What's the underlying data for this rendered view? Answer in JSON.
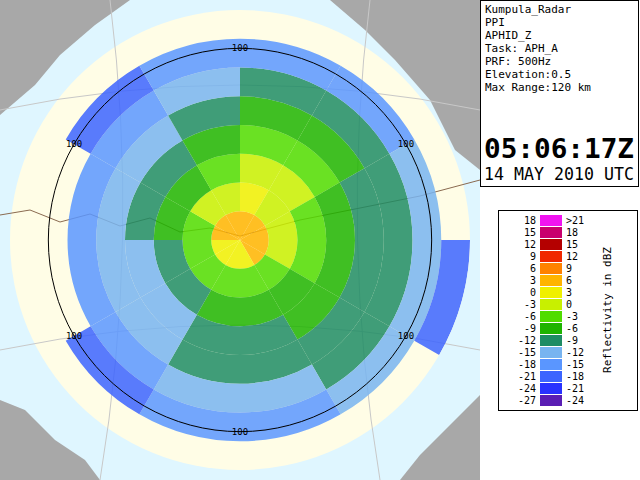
{
  "chart_data": {
    "type": "radar_ppi",
    "header": [
      "Kumpula_Radar",
      "PPI",
      "APHID_Z",
      "Task: APH_A",
      "PRF: 500Hz",
      "Elevation:0.5",
      "Max Range:120 km"
    ],
    "time": "05:06:17Z",
    "date": "14 MAY 2010 UTC",
    "rlim": [
      0,
      120
    ],
    "range_rings": [
      100
    ],
    "azimuth_bins": [
      0,
      30,
      60,
      90,
      120,
      150,
      180,
      210,
      240,
      270,
      300,
      330,
      360
    ],
    "range_bins": [
      0,
      15,
      30,
      45,
      60,
      75,
      90,
      105,
      120
    ],
    "cells": [
      [
        3,
        0,
        -3,
        -6,
        -9,
        -12,
        -18,
        null
      ],
      [
        3,
        -1,
        -3,
        -6,
        -9,
        -12,
        -18,
        null
      ],
      [
        3,
        -3,
        -6,
        -8,
        -10,
        -12,
        -15,
        null
      ],
      [
        3,
        -3,
        -6,
        -8,
        -10,
        -12,
        -15,
        -21
      ],
      [
        3,
        -4,
        -7,
        -9,
        -10,
        -12,
        -15,
        null
      ],
      [
        0,
        -4,
        -8,
        -10,
        -12,
        -14,
        -18,
        null
      ],
      [
        0,
        -5,
        -8,
        -10,
        -12,
        -15,
        -18,
        null
      ],
      [
        0,
        -6,
        -10,
        -13,
        -15,
        -17,
        -21,
        null
      ],
      [
        0,
        -6,
        -10,
        -13,
        -15,
        -18,
        null,
        null
      ],
      [
        3,
        -5,
        -9,
        -12,
        -15,
        -18,
        null,
        null
      ],
      [
        3,
        -3,
        -7,
        -10,
        -13,
        -16,
        -21,
        null
      ],
      [
        3,
        -2,
        -4,
        -7,
        -10,
        -13,
        -18,
        null
      ]
    ],
    "color_bar": {
      "title": "Reflectivity in dBZ",
      "rows": [
        {
          "from": 18,
          "to": {
            "value": 21,
            "label": ">21"
          },
          "color": "#f014f0"
        },
        {
          "from": 15,
          "to": 18,
          "color": "#c8006e"
        },
        {
          "from": 12,
          "to": 15,
          "color": "#b40000"
        },
        {
          "from": 9,
          "to": 12,
          "color": "#f02800"
        },
        {
          "from": 6,
          "to": 9,
          "color": "#ff8200"
        },
        {
          "from": 3,
          "to": 6,
          "color": "#ffb400"
        },
        {
          "from": 0,
          "to": 3,
          "color": "#f0f000"
        },
        {
          "from": -3,
          "to": 0,
          "color": "#c8f000"
        },
        {
          "from": -6,
          "to": -3,
          "color": "#50dc00"
        },
        {
          "from": -9,
          "to": -6,
          "color": "#1eb400"
        },
        {
          "from": -12,
          "to": -9,
          "color": "#1e8c64"
        },
        {
          "from": -15,
          "to": -12,
          "color": "#78b4f0"
        },
        {
          "from": -18,
          "to": -15,
          "color": "#5a96ff"
        },
        {
          "from": -21,
          "to": -18,
          "color": "#3c64ff"
        },
        {
          "from": -24,
          "to": -21,
          "color": "#2832ff"
        },
        {
          "from": -27,
          "to": -24,
          "color": "#5a1eb4"
        }
      ]
    }
  }
}
